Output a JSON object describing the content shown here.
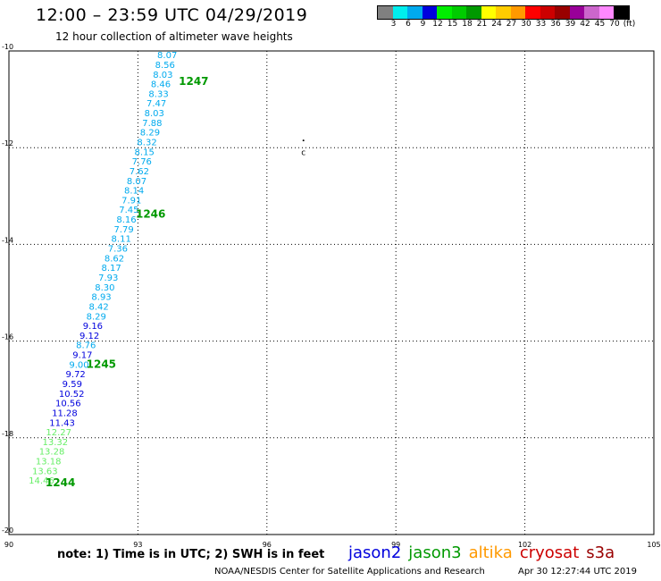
{
  "header": {
    "title": "12:00 – 23:59 UTC 04/29/2019",
    "subtitle": "12 hour collection of altimeter wave heights"
  },
  "legend": {
    "colors": [
      "#808080",
      "#00eeee",
      "#00aaee",
      "#0000dd",
      "#00ee00",
      "#00cc00",
      "#009900",
      "#ffff00",
      "#ffcc00",
      "#ff9900",
      "#ff0000",
      "#cc0000",
      "#990000",
      "#990099",
      "#cc66cc",
      "#ff88ff",
      "#000000"
    ],
    "labels": [
      "3",
      "6",
      "9",
      "12",
      "15",
      "18",
      "21",
      "24",
      "27",
      "30",
      "33",
      "36",
      "39",
      "42",
      "45",
      "70",
      "(ft)"
    ]
  },
  "map": {
    "lon_range": [
      90,
      105
    ],
    "lat_range": [
      -20,
      -10
    ],
    "x_ticks": [
      "90",
      "93",
      "96",
      "99",
      "102",
      "105"
    ],
    "y_ticks": [
      "-10",
      "-12",
      "-14",
      "-16",
      "-18",
      "-20"
    ],
    "x_tick_values": [
      90,
      93,
      96,
      99,
      102,
      105
    ],
    "y_tick_values": [
      -10,
      -12,
      -14,
      -16,
      -18,
      -20
    ],
    "island_marker": "c",
    "time_labels": [
      {
        "text": "1247",
        "lon": 93.95,
        "lat": -10.7
      },
      {
        "text": "1246",
        "lon": 92.95,
        "lat": -13.45
      },
      {
        "text": "1245",
        "lon": 91.8,
        "lat": -16.55
      },
      {
        "text": "1244",
        "lon": 90.85,
        "lat": -19.0
      }
    ],
    "wave_heights": [
      {
        "v": "8.07",
        "lon": 93.45,
        "lat": -10.15,
        "c": "#00aaee"
      },
      {
        "v": "8.56",
        "lon": 93.4,
        "lat": -10.35,
        "c": "#00aaee"
      },
      {
        "v": "8.03",
        "lon": 93.35,
        "lat": -10.55,
        "c": "#00aaee"
      },
      {
        "v": "8.46",
        "lon": 93.3,
        "lat": -10.75,
        "c": "#00aaee"
      },
      {
        "v": "8.33",
        "lon": 93.25,
        "lat": -10.95,
        "c": "#00aaee"
      },
      {
        "v": "7.47",
        "lon": 93.2,
        "lat": -11.15,
        "c": "#00aaee"
      },
      {
        "v": "8.03",
        "lon": 93.15,
        "lat": -11.35,
        "c": "#00aaee"
      },
      {
        "v": "7.88",
        "lon": 93.1,
        "lat": -11.55,
        "c": "#00aaee"
      },
      {
        "v": "8.29",
        "lon": 93.05,
        "lat": -11.75,
        "c": "#00aaee"
      },
      {
        "v": "8.32",
        "lon": 92.98,
        "lat": -11.95,
        "c": "#00aaee"
      },
      {
        "v": "8.15",
        "lon": 92.92,
        "lat": -12.15,
        "c": "#00aaee"
      },
      {
        "v": "7.76",
        "lon": 92.86,
        "lat": -12.35,
        "c": "#00aaee"
      },
      {
        "v": "7.62",
        "lon": 92.8,
        "lat": -12.55,
        "c": "#00aaee"
      },
      {
        "v": "8.07",
        "lon": 92.74,
        "lat": -12.75,
        "c": "#00aaee"
      },
      {
        "v": "8.14",
        "lon": 92.68,
        "lat": -12.95,
        "c": "#00aaee"
      },
      {
        "v": "7.91",
        "lon": 92.62,
        "lat": -13.15,
        "c": "#00aaee"
      },
      {
        "v": "7.45",
        "lon": 92.56,
        "lat": -13.35,
        "c": "#00aaee"
      },
      {
        "v": "8.16",
        "lon": 92.5,
        "lat": -13.55,
        "c": "#00aaee"
      },
      {
        "v": "7.79",
        "lon": 92.44,
        "lat": -13.75,
        "c": "#00aaee"
      },
      {
        "v": "8.11",
        "lon": 92.38,
        "lat": -13.95,
        "c": "#00aaee"
      },
      {
        "v": "7.36",
        "lon": 92.3,
        "lat": -14.15,
        "c": "#00aaee"
      },
      {
        "v": "8.62",
        "lon": 92.22,
        "lat": -14.35,
        "c": "#00aaee"
      },
      {
        "v": "8.17",
        "lon": 92.15,
        "lat": -14.55,
        "c": "#00aaee"
      },
      {
        "v": "7.93",
        "lon": 92.08,
        "lat": -14.75,
        "c": "#00aaee"
      },
      {
        "v": "8.30",
        "lon": 92.0,
        "lat": -14.95,
        "c": "#00aaee"
      },
      {
        "v": "8.93",
        "lon": 91.92,
        "lat": -15.15,
        "c": "#00aaee"
      },
      {
        "v": "8.42",
        "lon": 91.86,
        "lat": -15.35,
        "c": "#00aaee"
      },
      {
        "v": "8.29",
        "lon": 91.8,
        "lat": -15.55,
        "c": "#00aaee"
      },
      {
        "v": "9.16",
        "lon": 91.72,
        "lat": -15.75,
        "c": "#0000dd"
      },
      {
        "v": "9.12",
        "lon": 91.64,
        "lat": -15.95,
        "c": "#0000dd"
      },
      {
        "v": "8.76",
        "lon": 91.56,
        "lat": -16.15,
        "c": "#00aaee"
      },
      {
        "v": "9.17",
        "lon": 91.48,
        "lat": -16.35,
        "c": "#0000dd"
      },
      {
        "v": "9.00",
        "lon": 91.4,
        "lat": -16.55,
        "c": "#00aaee"
      },
      {
        "v": "9.72",
        "lon": 91.32,
        "lat": -16.75,
        "c": "#0000dd"
      },
      {
        "v": "9.59",
        "lon": 91.24,
        "lat": -16.95,
        "c": "#0000dd"
      },
      {
        "v": "10.52",
        "lon": 91.16,
        "lat": -17.15,
        "c": "#0000dd"
      },
      {
        "v": "10.56",
        "lon": 91.08,
        "lat": -17.35,
        "c": "#0000dd"
      },
      {
        "v": "11.28",
        "lon": 91.0,
        "lat": -17.55,
        "c": "#0000dd"
      },
      {
        "v": "11.43",
        "lon": 90.94,
        "lat": -17.75,
        "c": "#0000dd"
      },
      {
        "v": "12.27",
        "lon": 90.86,
        "lat": -17.95,
        "c": "#66ee66"
      },
      {
        "v": "13.32",
        "lon": 90.78,
        "lat": -18.15,
        "c": "#66ee66"
      },
      {
        "v": "13.28",
        "lon": 90.7,
        "lat": -18.35,
        "c": "#66ee66"
      },
      {
        "v": "13.18",
        "lon": 90.62,
        "lat": -18.55,
        "c": "#66ee66"
      },
      {
        "v": "13.63",
        "lon": 90.54,
        "lat": -18.75,
        "c": "#66ee66"
      },
      {
        "v": "14.46",
        "lon": 90.46,
        "lat": -18.95,
        "c": "#66ee66"
      }
    ]
  },
  "footer": {
    "note": "note: 1) Time is in UTC; 2) SWH is in feet",
    "satellites": [
      {
        "name": "jason2",
        "color": "#0000dd"
      },
      {
        "name": "jason3",
        "color": "#009900"
      },
      {
        "name": "altika",
        "color": "#ff9900"
      },
      {
        "name": "cryosat",
        "color": "#cc0000"
      },
      {
        "name": "s3a",
        "color": "#990000"
      }
    ],
    "credit": "NOAA/NESDIS Center for Satellite Applications and Research",
    "generated": "Apr 30 12:27:44 UTC 2019"
  }
}
